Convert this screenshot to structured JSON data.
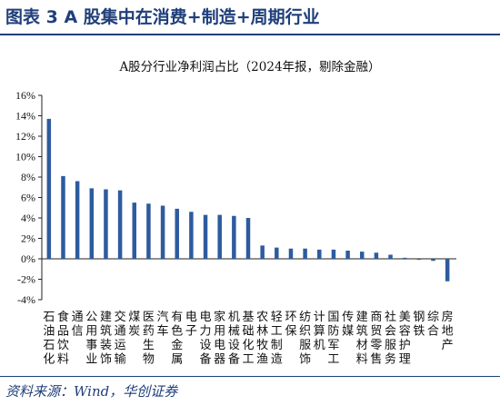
{
  "header": {
    "title": "图表 3   A 股集中在消费+制造+周期行业"
  },
  "source": "资料来源：Wind，华创证券",
  "chart_data": {
    "type": "bar",
    "title": "A股分行业净利润占比（2024年报，剔除金融）",
    "xlabel": "",
    "ylabel": "",
    "ylim": [
      -4,
      16
    ],
    "yticks": [
      "-4%",
      "-2%",
      "0%",
      "2%",
      "4%",
      "6%",
      "8%",
      "10%",
      "12%",
      "14%",
      "16%"
    ],
    "grid": false,
    "bar_color": "#2e5b9e",
    "categories": [
      "石油石化",
      "食品饮料",
      "通信",
      "公用事业",
      "建筑装饰",
      "交通运输",
      "煤炭",
      "医药生物",
      "汽车",
      "有色金属",
      "电子",
      "电力设备",
      "家用电器",
      "机械设备",
      "基础化工",
      "农林牧渔",
      "轻工制造",
      "环保",
      "纺织服饰",
      "计算机",
      "国防军工",
      "传媒",
      "建筑材料",
      "商贸零售",
      "社会服务",
      "美容护理",
      "钢铁",
      "综合",
      "房地产"
    ],
    "values": [
      13.7,
      8.1,
      7.6,
      6.9,
      6.8,
      6.7,
      5.5,
      5.4,
      5.2,
      4.9,
      4.6,
      4.3,
      4.3,
      4.2,
      4.0,
      1.3,
      1.1,
      1.0,
      1.0,
      0.9,
      0.9,
      0.8,
      0.7,
      0.6,
      0.4,
      0.1,
      -0.1,
      -0.2,
      -2.2
    ]
  }
}
